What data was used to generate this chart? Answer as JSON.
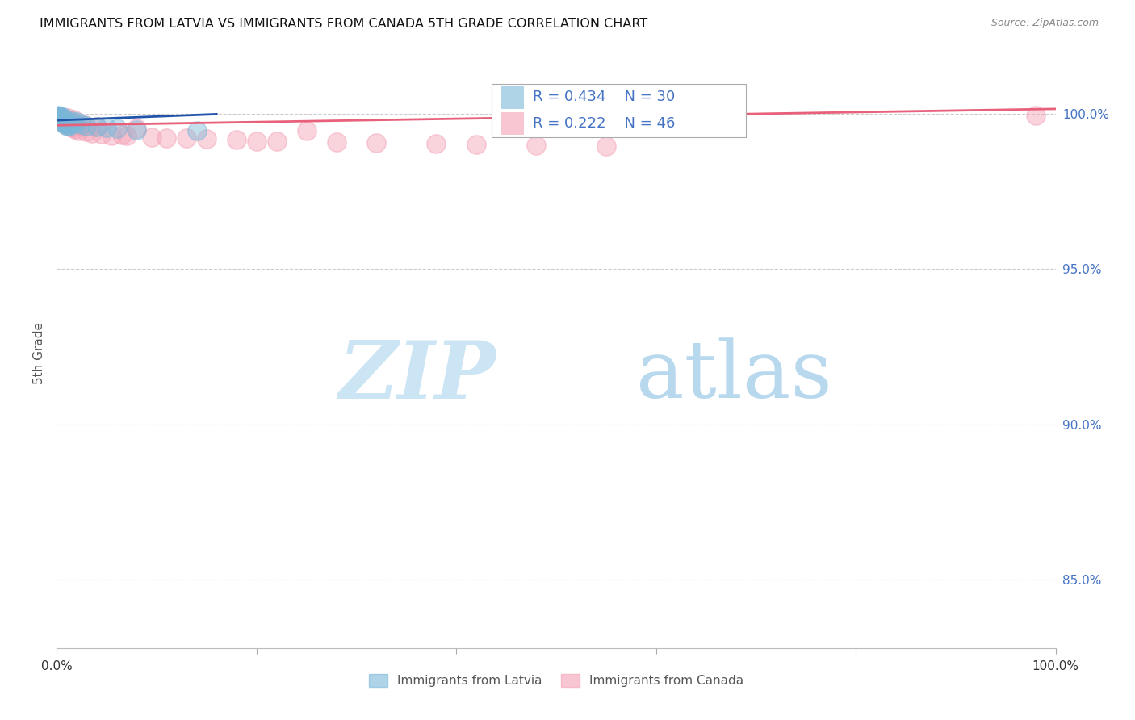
{
  "title": "IMMIGRANTS FROM LATVIA VS IMMIGRANTS FROM CANADA 5TH GRADE CORRELATION CHART",
  "source": "Source: ZipAtlas.com",
  "ylabel": "5th Grade",
  "color_latvia": "#7ab8d9",
  "color_canada": "#f4a0b5",
  "trendline_color_latvia": "#2255aa",
  "trendline_color_canada": "#e8607a",
  "watermark_zip_color": "#cce5f5",
  "watermark_atlas_color": "#b8d8ee",
  "legend_color": "#4472c4",
  "xlim": [
    0.0,
    1.0
  ],
  "ylim": [
    0.828,
    1.018
  ],
  "yticks": [
    0.85,
    0.9,
    0.95,
    1.0
  ],
  "ytick_labels": [
    "85.0%",
    "90.0%",
    "95.0%",
    "100.0%"
  ],
  "xtick_positions": [
    0.0,
    0.2,
    0.4,
    0.6,
    0.8,
    1.0
  ],
  "xtick_labels": [
    "0.0%",
    "",
    "",
    "",
    "",
    "100.0%"
  ],
  "latvia_x": [
    0.001,
    0.002,
    0.002,
    0.003,
    0.003,
    0.004,
    0.004,
    0.005,
    0.005,
    0.006,
    0.006,
    0.007,
    0.007,
    0.008,
    0.008,
    0.009,
    0.01,
    0.011,
    0.012,
    0.013,
    0.015,
    0.017,
    0.02,
    0.025,
    0.03,
    0.04,
    0.05,
    0.06,
    0.08,
    0.14
  ],
  "latvia_y": [
    0.9995,
    0.999,
    0.9985,
    0.9992,
    0.9988,
    0.9982,
    0.9978,
    0.9985,
    0.998,
    0.9975,
    0.9988,
    0.9972,
    0.9968,
    0.9976,
    0.997,
    0.9965,
    0.996,
    0.997,
    0.9965,
    0.996,
    0.9975,
    0.9968,
    0.9972,
    0.9965,
    0.996,
    0.9958,
    0.9955,
    0.9952,
    0.9948,
    0.9945
  ],
  "canada_x": [
    0.001,
    0.002,
    0.003,
    0.003,
    0.004,
    0.005,
    0.006,
    0.006,
    0.007,
    0.008,
    0.009,
    0.01,
    0.011,
    0.012,
    0.013,
    0.015,
    0.017,
    0.018,
    0.02,
    0.022,
    0.025,
    0.028,
    0.03,
    0.035,
    0.04,
    0.045,
    0.055,
    0.065,
    0.07,
    0.08,
    0.095,
    0.11,
    0.13,
    0.15,
    0.18,
    0.2,
    0.22,
    0.25,
    0.28,
    0.32,
    0.38,
    0.42,
    0.48,
    0.55,
    0.64,
    0.98
  ],
  "canada_y": [
    0.9992,
    0.9988,
    0.9985,
    0.9982,
    0.9978,
    0.999,
    0.9975,
    0.9985,
    0.997,
    0.9972,
    0.9968,
    0.9965,
    0.9985,
    0.996,
    0.9975,
    0.9955,
    0.998,
    0.995,
    0.9968,
    0.9945,
    0.996,
    0.9962,
    0.9942,
    0.9938,
    0.9958,
    0.9935,
    0.993,
    0.9932,
    0.9928,
    0.9952,
    0.9925,
    0.9922,
    0.992,
    0.9918,
    0.9915,
    0.9912,
    0.991,
    0.9945,
    0.9908,
    0.9905,
    0.9902,
    0.99,
    0.9898,
    0.9895,
    0.999,
    0.9995
  ],
  "latvia_trend_x": [
    0.0,
    0.16
  ],
  "latvia_trend_y": [
    0.9978,
    0.9998
  ],
  "canada_trend_x": [
    0.0,
    1.0
  ],
  "canada_trend_y": [
    0.9962,
    1.0015
  ]
}
